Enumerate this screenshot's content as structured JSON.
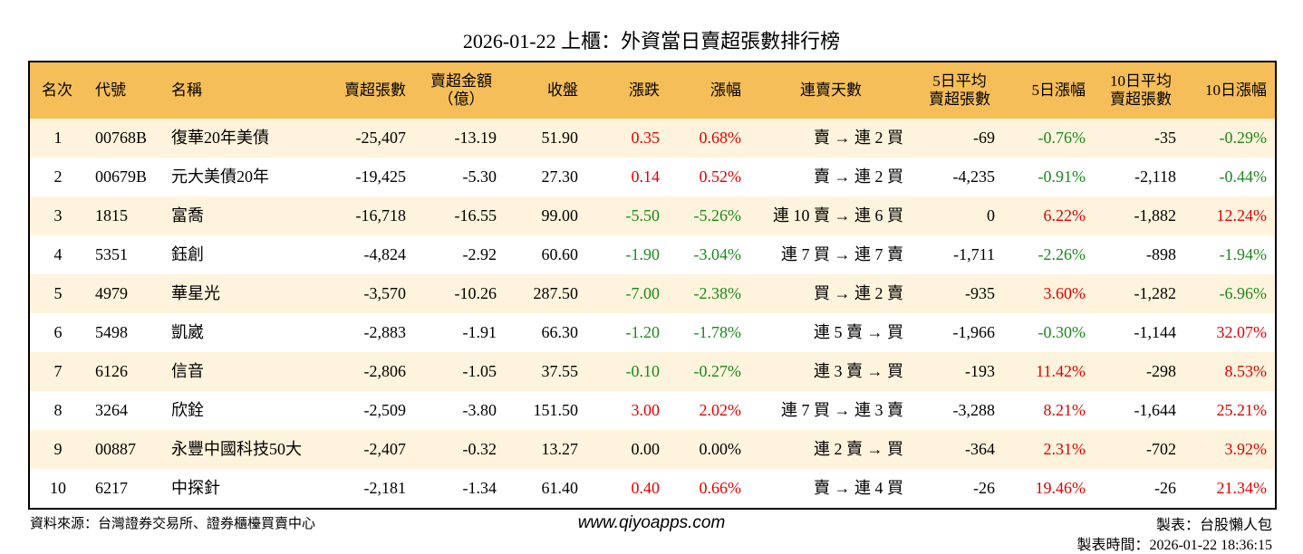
{
  "title": "2026-01-22 上櫃：外資當日賣超張數排行榜",
  "table": {
    "columns": [
      [
        "名次"
      ],
      [
        "代號"
      ],
      [
        "名稱"
      ],
      [
        "賣超張數"
      ],
      [
        "賣超金額",
        "（億）"
      ],
      [
        "收盤"
      ],
      [
        "漲跌"
      ],
      [
        "漲幅"
      ],
      [
        "連賣天數"
      ],
      [
        "5日平均",
        "賣超張數"
      ],
      [
        "5日漲幅"
      ],
      [
        "10日平均",
        "賣超張數"
      ],
      [
        "10日漲幅"
      ]
    ],
    "rows": [
      [
        "1",
        "00768B",
        "復華20年美債",
        "-25,407",
        "-13.19",
        "51.90",
        "0.35",
        "0.68%",
        "賣 → 連 2 買",
        "-69",
        "-0.76%",
        "-35",
        "-0.29%"
      ],
      [
        "2",
        "00679B",
        "元大美債20年",
        "-19,425",
        "-5.30",
        "27.30",
        "0.14",
        "0.52%",
        "賣 → 連 2 買",
        "-4,235",
        "-0.91%",
        "-2,118",
        "-0.44%"
      ],
      [
        "3",
        "1815",
        "富喬",
        "-16,718",
        "-16.55",
        "99.00",
        "-5.50",
        "-5.26%",
        "連 10 賣 → 連 6 買",
        "0",
        "6.22%",
        "-1,882",
        "12.24%"
      ],
      [
        "4",
        "5351",
        "鈺創",
        "-4,824",
        "-2.92",
        "60.60",
        "-1.90",
        "-3.04%",
        "連 7 買 → 連 7 賣",
        "-1,711",
        "-2.26%",
        "-898",
        "-1.94%"
      ],
      [
        "5",
        "4979",
        "華星光",
        "-3,570",
        "-10.26",
        "287.50",
        "-7.00",
        "-2.38%",
        "買 → 連 2 賣",
        "-935",
        "3.60%",
        "-1,282",
        "-6.96%"
      ],
      [
        "6",
        "5498",
        "凱崴",
        "-2,883",
        "-1.91",
        "66.30",
        "-1.20",
        "-1.78%",
        "連 5 賣 → 買",
        "-1,966",
        "-0.30%",
        "-1,144",
        "32.07%"
      ],
      [
        "7",
        "6126",
        "信音",
        "-2,806",
        "-1.05",
        "37.55",
        "-0.10",
        "-0.27%",
        "連 3 賣 → 買",
        "-193",
        "11.42%",
        "-298",
        "8.53%"
      ],
      [
        "8",
        "3264",
        "欣銓",
        "-2,509",
        "-3.80",
        "151.50",
        "3.00",
        "2.02%",
        "連 7 買 → 連 3 賣",
        "-3,288",
        "8.21%",
        "-1,644",
        "25.21%"
      ],
      [
        "9",
        "00887",
        "永豐中國科技50大",
        "-2,407",
        "-0.32",
        "13.27",
        "0.00",
        "0.00%",
        "連 2 賣 → 買",
        "-364",
        "2.31%",
        "-702",
        "3.92%"
      ],
      [
        "10",
        "6217",
        "中探針",
        "-2,181",
        "-1.34",
        "61.40",
        "0.40",
        "0.66%",
        "賣 → 連 4 買",
        "-26",
        "19.46%",
        "-26",
        "21.34%"
      ]
    ]
  },
  "footer": {
    "source": "資料來源：台灣證券交易所、證券櫃檯買賣中心",
    "website": "www.qiyoapps.com",
    "author": "製表：台股懶人包",
    "time": "製表時間：2026-01-22 18:36:15"
  }
}
